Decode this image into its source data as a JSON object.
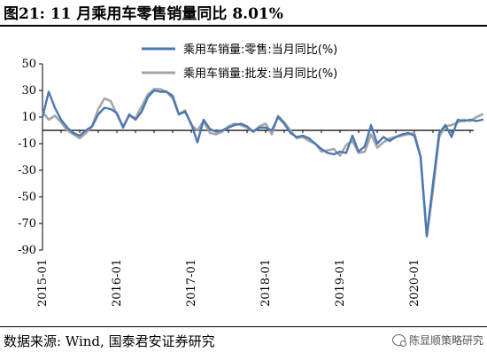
{
  "header": {
    "title": "图21: 11 月乘用车零售销量同比 8.01%"
  },
  "footer": {
    "source": "数据来源: Wind, 国泰君安证券研究",
    "watermark": "陈显顺策略研究"
  },
  "colors": {
    "retail": "#4a77b4",
    "wholesale": "#a6a6a6",
    "axis": "#000000"
  },
  "chart_data": {
    "type": "line",
    "ylim": [
      -90,
      50
    ],
    "yticks": [
      50,
      30,
      10,
      -10,
      -30,
      -50,
      -70,
      -90
    ],
    "xticks": [
      "2015-01",
      "2016-01",
      "2017-01",
      "2018-01",
      "2019-01",
      "2020-01"
    ],
    "x_start": "2015-01",
    "legend_position": "top",
    "grid": false,
    "series": [
      {
        "name": "乘用车销量:零售:当月同比(%)",
        "color": "#4a77b4",
        "values": [
          10,
          29,
          17,
          8,
          2,
          -2,
          -4,
          0,
          3,
          12,
          17,
          16,
          13,
          2,
          12,
          8,
          14,
          25,
          30,
          29,
          29,
          26,
          12,
          14,
          5,
          -9,
          8,
          1,
          -1,
          0,
          2,
          4,
          5,
          3,
          -1,
          2,
          2,
          0,
          10,
          5,
          -2,
          -5,
          -4,
          -6,
          -10,
          -14,
          -17,
          -18,
          -16,
          -17,
          -4,
          -16,
          -12,
          4,
          -10,
          -5,
          -8,
          -5,
          -3,
          -2,
          -4,
          -20,
          -79,
          -40,
          -2,
          4,
          -5,
          8,
          7,
          8,
          7,
          8
        ]
      },
      {
        "name": "乘用车销量:批发:当月同比(%)",
        "color": "#a6a6a6",
        "values": [
          14,
          8,
          11,
          6,
          0,
          -3,
          -6,
          -2,
          3,
          16,
          24,
          22,
          12,
          3,
          11,
          9,
          18,
          27,
          31,
          31,
          29,
          24,
          12,
          15,
          4,
          0,
          7,
          -2,
          -3,
          -1,
          3,
          5,
          4,
          2,
          -1,
          3,
          5,
          -3,
          11,
          6,
          0,
          -6,
          -5,
          -8,
          -10,
          -16,
          -15,
          -14,
          -19,
          -11,
          -8,
          -17,
          -16,
          -3,
          -13,
          -9,
          -6,
          -5,
          -4,
          -3,
          -2,
          -20,
          -80,
          -45,
          -5,
          3,
          4,
          6,
          8,
          7,
          10,
          12
        ]
      }
    ]
  }
}
